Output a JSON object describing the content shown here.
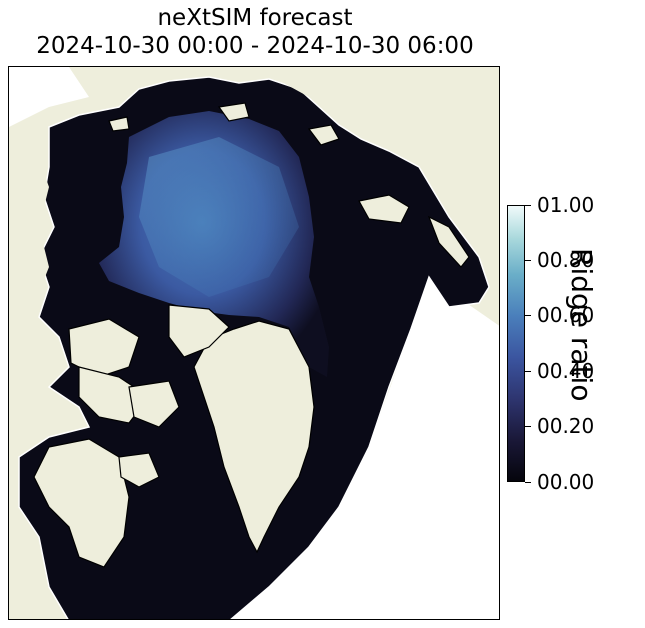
{
  "title": {
    "line1": "neXtSIM forecast",
    "line2": "2024-10-30 00:00 - 2024-10-30 06:00"
  },
  "colorbar": {
    "label": "Ridge ratio",
    "ticks": [
      "00.00",
      "00.20",
      "00.40",
      "00.60",
      "00.80",
      "01.00"
    ],
    "range": [
      0.0,
      1.0
    ],
    "colormap": [
      "#05050c",
      "#2e3570",
      "#3b55a0",
      "#4a7fbb",
      "#6aaec8",
      "#f0fafa"
    ]
  },
  "colors": {
    "land": "#eeeedc",
    "ocean_no_data": "#ffffff",
    "coastline": "#ffffff",
    "low_ridge": "#0a0a16",
    "high_ridge": "#4a78b8"
  }
}
